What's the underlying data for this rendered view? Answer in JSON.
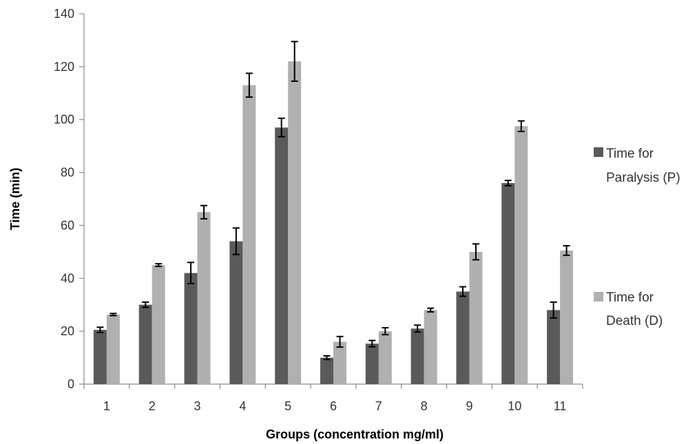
{
  "chart_data": {
    "type": "bar",
    "title": "",
    "xlabel": "Groups (concentration mg/ml)",
    "ylabel": "Time (min)",
    "ylim": [
      0,
      140
    ],
    "yticks": [
      0,
      20,
      40,
      60,
      80,
      100,
      120,
      140
    ],
    "grid": false,
    "legend_position": "right",
    "categories": [
      "1",
      "2",
      "3",
      "4",
      "5",
      "6",
      "7",
      "8",
      "9",
      "10",
      "11"
    ],
    "series": [
      {
        "name_lines": [
          "Time for",
          "Paralysis (P)"
        ],
        "color": "#5a5a5a",
        "values": [
          20.5,
          30,
          42,
          54,
          97,
          10,
          15.3,
          21,
          35,
          76,
          28
        ],
        "errors": [
          1,
          1,
          4,
          5,
          3.5,
          0.7,
          1.2,
          1.3,
          1.8,
          1,
          3
        ]
      },
      {
        "name_lines": [
          "Time for",
          "Death (D)"
        ],
        "color": "#b0b0b0",
        "values": [
          26.3,
          45,
          65,
          113,
          122,
          16,
          20,
          28,
          50,
          97.5,
          50.5
        ],
        "errors": [
          0.4,
          0.5,
          2.5,
          4.5,
          7.5,
          2,
          1.3,
          0.7,
          3,
          2,
          1.8
        ]
      }
    ]
  }
}
